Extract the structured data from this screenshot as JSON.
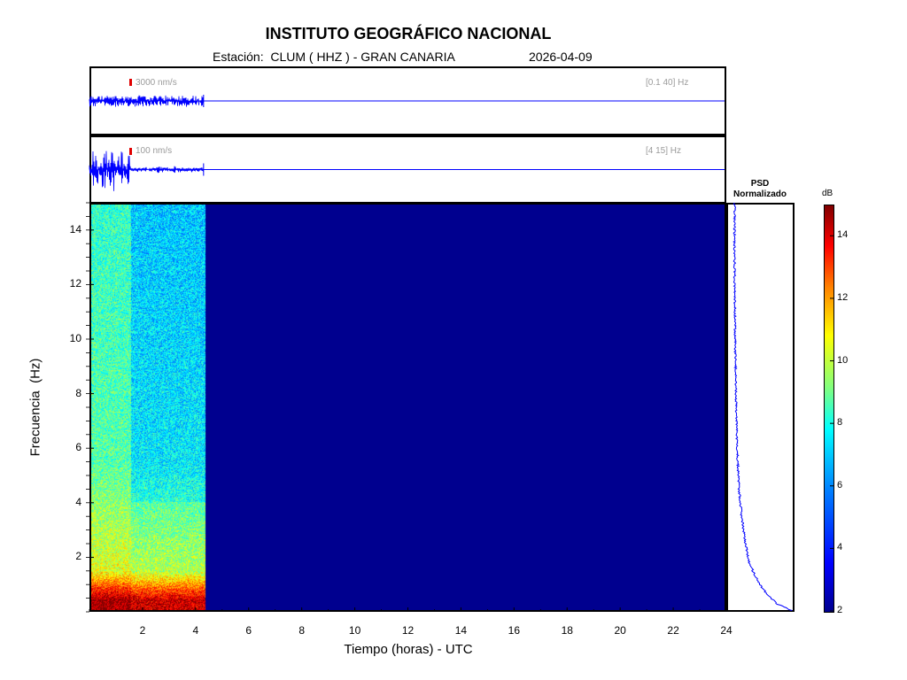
{
  "header": {
    "title": "INSTITUTO GEOGRÁFICO NACIONAL",
    "subtitle": "Estación:  CLUM ( HHZ ) - GRAN CANARIA",
    "date": "2026-04-09"
  },
  "colors": {
    "trace": "#0000ff",
    "scale_bar": "#e00000",
    "background_spectrogram": "#00008f"
  },
  "chart_data": [
    {
      "type": "line",
      "name": "broadband-trace",
      "scale_label": "3000 nm/s",
      "band_label": "[0.1 40] Hz",
      "x_range_hours": [
        0,
        24
      ],
      "data_end_hour": 4.3
    },
    {
      "type": "line",
      "name": "filtered-trace",
      "scale_label": "100 nm/s",
      "band_label": "[4 15] Hz",
      "x_range_hours": [
        0,
        24
      ],
      "data_end_hour": 4.3
    },
    {
      "type": "heatmap",
      "name": "spectrogram",
      "xlabel": "Tiempo (horas) - UTC",
      "ylabel": "Frecuencia  (Hz)",
      "xlim": [
        0,
        24
      ],
      "ylim": [
        0,
        15
      ],
      "xticks": [
        2,
        4,
        6,
        8,
        10,
        12,
        14,
        16,
        18,
        20,
        22,
        24
      ],
      "yticks": [
        2,
        4,
        6,
        8,
        10,
        12,
        14
      ],
      "data_end_hour": 4.3,
      "colorbar": {
        "unit": "dB",
        "range": [
          2,
          15
        ],
        "ticks": [
          2,
          4,
          6,
          8,
          10,
          12,
          14
        ]
      }
    },
    {
      "type": "line",
      "name": "psd",
      "title_line1": "PSD",
      "title_line2": "Normalizado",
      "ylim": [
        0,
        15
      ],
      "profile": [
        {
          "f": 0.05,
          "v": 0.98
        },
        {
          "f": 0.3,
          "v": 0.75
        },
        {
          "f": 0.8,
          "v": 0.55
        },
        {
          "f": 1.3,
          "v": 0.42
        },
        {
          "f": 1.8,
          "v": 0.33
        },
        {
          "f": 2.5,
          "v": 0.27
        },
        {
          "f": 3.5,
          "v": 0.21
        },
        {
          "f": 4.5,
          "v": 0.17
        },
        {
          "f": 6,
          "v": 0.14
        },
        {
          "f": 8,
          "v": 0.12
        },
        {
          "f": 10,
          "v": 0.11
        },
        {
          "f": 12,
          "v": 0.1
        },
        {
          "f": 15,
          "v": 0.1
        }
      ]
    }
  ]
}
